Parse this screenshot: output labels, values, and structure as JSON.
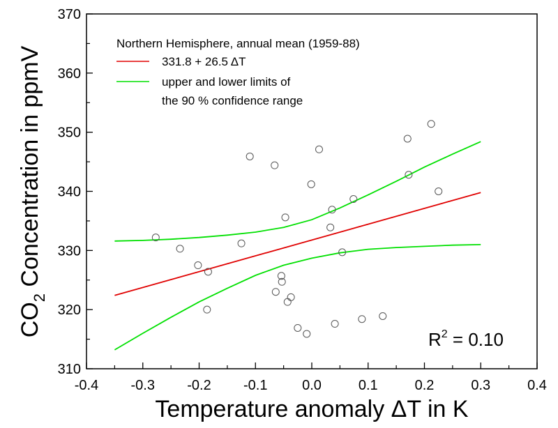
{
  "chart_data": {
    "type": "scatter",
    "xlabel": "Temperature anomaly ΔT in K",
    "ylabel": {
      "prefix": "CO",
      "subscript": "2",
      "suffix": " Concentration in ppmV"
    },
    "xlim": [
      -0.4,
      0.4
    ],
    "ylim": [
      310,
      370
    ],
    "x_ticks": [
      -0.4,
      -0.3,
      -0.2,
      -0.1,
      0.0,
      0.1,
      0.2,
      0.3,
      0.4
    ],
    "x_tick_labels": [
      "-0.4",
      "-0.3",
      "-0.2",
      "-0.1",
      "0.0",
      "0.1",
      "0.2",
      "0.3",
      "0.4"
    ],
    "y_ticks": [
      310,
      320,
      330,
      340,
      350,
      360,
      370
    ],
    "y_tick_labels": [
      "310",
      "320",
      "330",
      "340",
      "350",
      "360",
      "370"
    ],
    "grid": false,
    "legend": {
      "placement": "top-left",
      "title": "Northern Hemisphere, annual mean (1959-88)",
      "entries": [
        {
          "label": "331.8 + 26.5 ΔT",
          "color": "#e00000"
        },
        {
          "label_lines": [
            "upper and lower limits of",
            "the 90 % confidence range"
          ],
          "color": "#00e000"
        }
      ]
    },
    "annotation": {
      "base": "R",
      "superscript": "2",
      "rest": " = 0.10"
    },
    "points": [
      {
        "x": -0.277,
        "y": 332.2
      },
      {
        "x": -0.234,
        "y": 330.3
      },
      {
        "x": -0.202,
        "y": 327.5
      },
      {
        "x": -0.184,
        "y": 326.4
      },
      {
        "x": -0.186,
        "y": 320.0
      },
      {
        "x": -0.125,
        "y": 331.2
      },
      {
        "x": -0.11,
        "y": 345.9
      },
      {
        "x": -0.066,
        "y": 344.4
      },
      {
        "x": -0.064,
        "y": 323.0
      },
      {
        "x": -0.054,
        "y": 325.7
      },
      {
        "x": -0.053,
        "y": 324.7
      },
      {
        "x": -0.047,
        "y": 335.6
      },
      {
        "x": -0.043,
        "y": 321.3
      },
      {
        "x": -0.037,
        "y": 322.1
      },
      {
        "x": -0.025,
        "y": 316.9
      },
      {
        "x": -0.009,
        "y": 315.9
      },
      {
        "x": -0.001,
        "y": 341.2
      },
      {
        "x": 0.013,
        "y": 347.1
      },
      {
        "x": 0.033,
        "y": 333.9
      },
      {
        "x": 0.036,
        "y": 336.9
      },
      {
        "x": 0.041,
        "y": 317.6
      },
      {
        "x": 0.054,
        "y": 329.7
      },
      {
        "x": 0.074,
        "y": 338.7
      },
      {
        "x": 0.089,
        "y": 318.4
      },
      {
        "x": 0.126,
        "y": 318.9
      },
      {
        "x": 0.17,
        "y": 348.9
      },
      {
        "x": 0.172,
        "y": 342.8
      },
      {
        "x": 0.212,
        "y": 351.4
      },
      {
        "x": 0.225,
        "y": 340.0
      }
    ],
    "series": [
      {
        "key": "fit",
        "color": "#e00000",
        "x": [
          -0.35,
          0.3
        ],
        "y": [
          322.4,
          339.8
        ]
      },
      {
        "key": "upper",
        "color": "#00e000",
        "x": [
          -0.35,
          -0.3,
          -0.25,
          -0.2,
          -0.15,
          -0.1,
          -0.05,
          0.0,
          0.05,
          0.1,
          0.15,
          0.2,
          0.25,
          0.3
        ],
        "y": [
          331.6,
          331.7,
          331.9,
          332.2,
          332.6,
          333.1,
          333.9,
          335.2,
          337.2,
          339.4,
          341.7,
          344.1,
          346.3,
          348.4
        ]
      },
      {
        "key": "lower",
        "color": "#00e000",
        "x": [
          -0.35,
          -0.3,
          -0.25,
          -0.2,
          -0.15,
          -0.1,
          -0.05,
          0.0,
          0.05,
          0.1,
          0.15,
          0.2,
          0.25,
          0.3
        ],
        "y": [
          313.2,
          316.0,
          318.7,
          321.3,
          323.6,
          325.8,
          327.5,
          328.7,
          329.6,
          330.2,
          330.5,
          330.7,
          330.9,
          331.0
        ]
      }
    ]
  }
}
